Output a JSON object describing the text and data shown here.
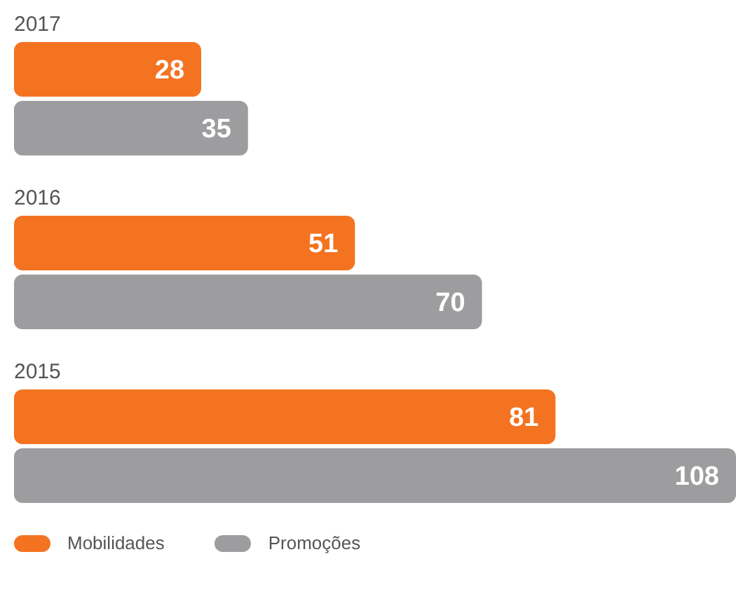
{
  "chart_data": {
    "type": "bar",
    "orientation": "horizontal",
    "categories": [
      "2017",
      "2016",
      "2015"
    ],
    "series": [
      {
        "name": "Mobilidades",
        "color": "#f47321",
        "values": [
          28,
          51,
          81
        ]
      },
      {
        "name": "Promoções",
        "color": "#9d9d9f",
        "values": [
          35,
          70,
          108
        ]
      }
    ],
    "data_labels": true,
    "grid": false,
    "legend": "bottom left"
  }
}
